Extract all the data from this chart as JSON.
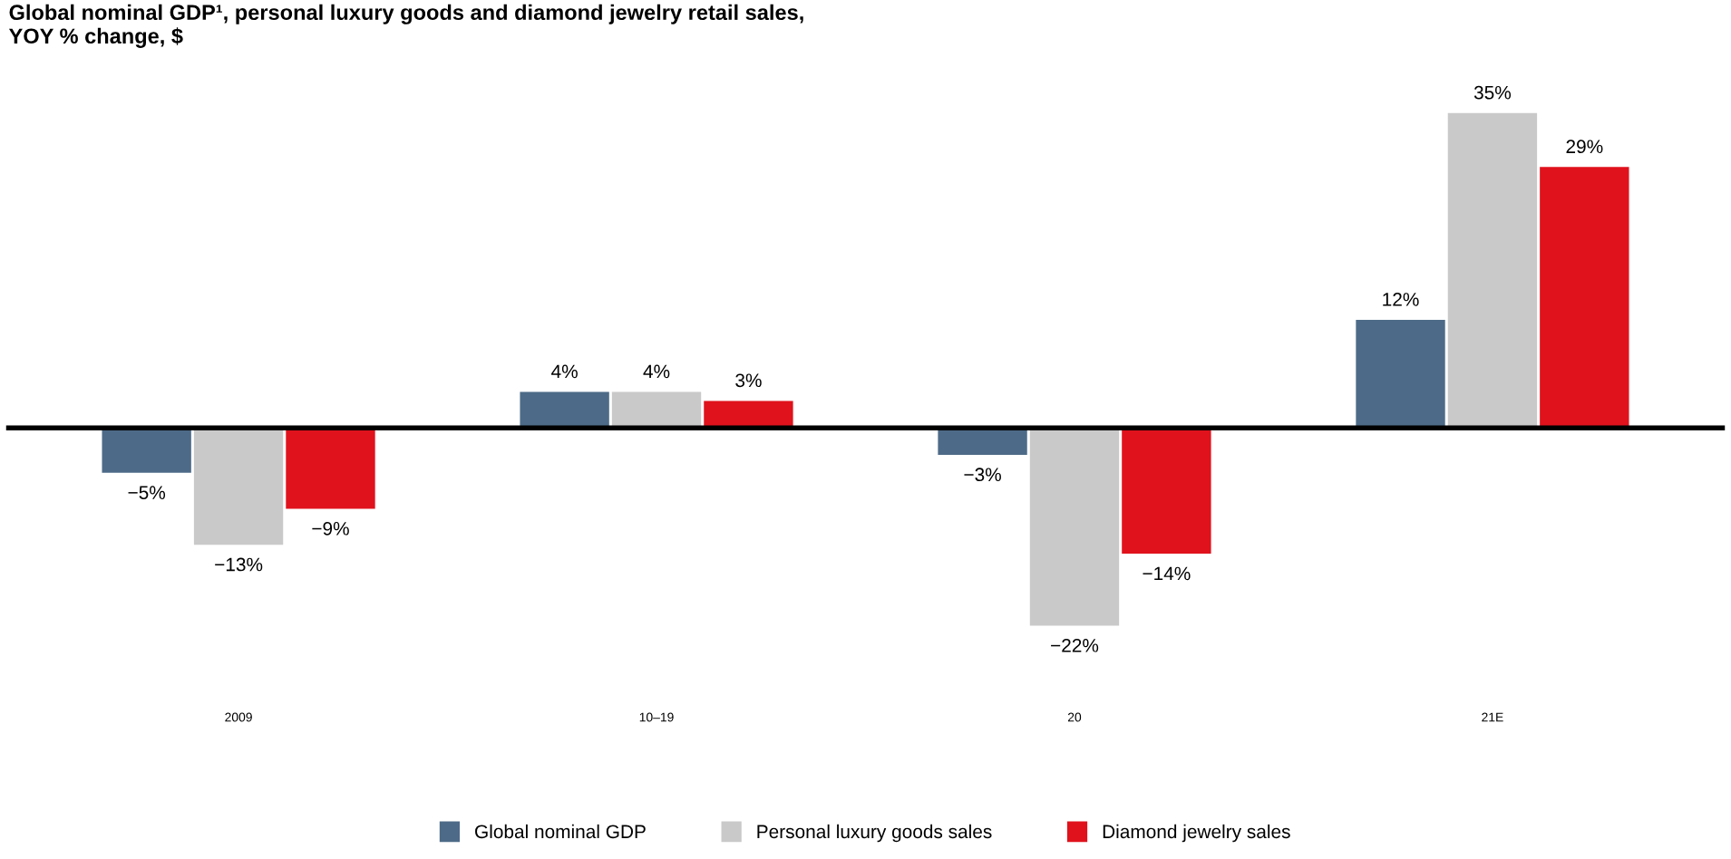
{
  "chart_data": {
    "type": "bar",
    "title": "Global nominal GDP¹, personal luxury goods and diamond jewelry retail sales,\nYOY % change, $",
    "categories": [
      "2009",
      "10–19",
      "20",
      "21E"
    ],
    "series": [
      {
        "name": "Global nominal GDP",
        "color": "#4d6b88",
        "values": [
          -5,
          4,
          -3,
          12
        ],
        "value_labels": [
          "−5%",
          "4%",
          "−3%",
          "12%"
        ]
      },
      {
        "name": "Personal luxury goods sales",
        "color": "#c9c9c9",
        "values": [
          -13,
          4,
          -22,
          35
        ],
        "value_labels": [
          "−13%",
          "4%",
          "−22%",
          "35%"
        ]
      },
      {
        "name": "Diamond jewelry sales",
        "color": "#e0121c",
        "values": [
          -9,
          3,
          -14,
          29
        ],
        "value_labels": [
          "−9%",
          "3%",
          "−14%",
          "29%"
        ]
      }
    ],
    "legend": "bottom",
    "grid": false
  }
}
